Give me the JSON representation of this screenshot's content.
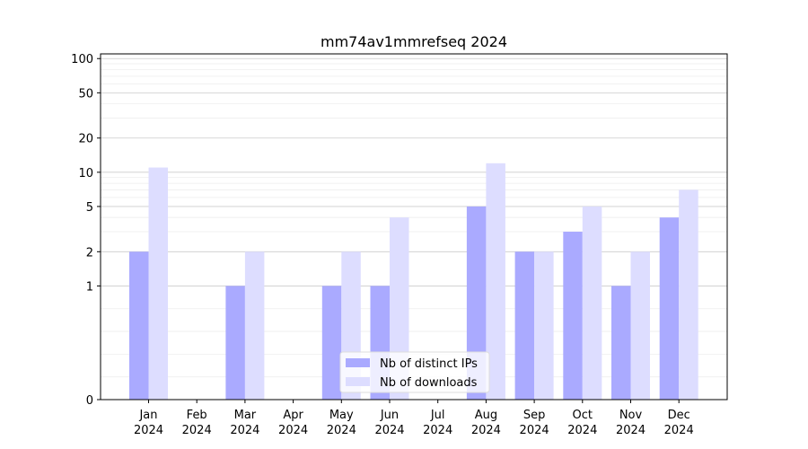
{
  "chart_data": {
    "type": "bar",
    "title": "mm74av1mmrefseq 2024",
    "xlabel": "",
    "ylabel": "",
    "y_scale": "symlog",
    "ylim": [
      0,
      110
    ],
    "y_ticks": [
      0,
      1,
      2,
      5,
      10,
      20,
      50,
      100
    ],
    "y_tick_labels": [
      "0",
      "1",
      "2",
      "5",
      "10",
      "20",
      "50",
      "100"
    ],
    "grid": "horizontal",
    "legend_position": "bottom-center",
    "categories": [
      "Jan\n2024",
      "Feb\n2024",
      "Mar\n2024",
      "Apr\n2024",
      "May\n2024",
      "Jun\n2024",
      "Jul\n2024",
      "Aug\n2024",
      "Sep\n2024",
      "Oct\n2024",
      "Nov\n2024",
      "Dec\n2024"
    ],
    "series": [
      {
        "name": "Nb of distinct IPs",
        "color": "#aaaaff",
        "values": [
          2,
          0,
          1,
          0,
          1,
          1,
          0,
          5,
          2,
          3,
          1,
          4
        ]
      },
      {
        "name": "Nb of downloads",
        "color": "#ddddff",
        "values": [
          11,
          0,
          2,
          0,
          2,
          4,
          0,
          12,
          2,
          5,
          2,
          7
        ]
      }
    ]
  }
}
